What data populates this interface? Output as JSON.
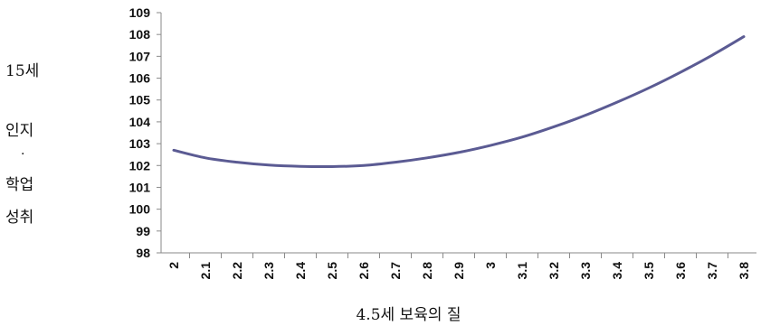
{
  "chart_data": {
    "type": "line",
    "title": "",
    "xlabel": "4.5세 보육의 질",
    "ylabel_lines": [
      "15세",
      "인지",
      "·",
      "학업",
      "성취"
    ],
    "ylim": [
      98,
      109
    ],
    "yticks": [
      98,
      99,
      100,
      101,
      102,
      103,
      104,
      105,
      106,
      107,
      108,
      109
    ],
    "xlim": [
      2.0,
      3.8
    ],
    "xticks": [
      "2",
      "2.1",
      "2.2",
      "2.3",
      "2.4",
      "2.5",
      "2.6",
      "2.7",
      "2.8",
      "2.9",
      "3",
      "3.1",
      "3.2",
      "3.3",
      "3.4",
      "3.5",
      "3.6",
      "3.7",
      "3.8"
    ],
    "grid": false,
    "legend": "none",
    "series": [
      {
        "color": "#5b5b93",
        "x": [
          2.0,
          2.1,
          2.2,
          2.3,
          2.4,
          2.5,
          2.6,
          2.7,
          2.8,
          2.9,
          3.0,
          3.1,
          3.2,
          3.3,
          3.4,
          3.5,
          3.6,
          3.7,
          3.8
        ],
        "y": [
          102.7,
          102.35,
          102.15,
          102.02,
          101.96,
          101.95,
          102.0,
          102.15,
          102.35,
          102.6,
          102.92,
          103.3,
          103.77,
          104.3,
          104.9,
          105.55,
          106.27,
          107.05,
          107.9
        ]
      }
    ]
  }
}
